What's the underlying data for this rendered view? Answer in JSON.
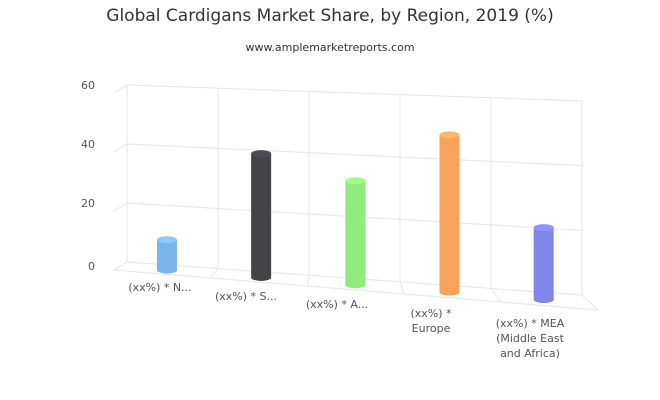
{
  "chart_data": {
    "type": "bar",
    "title": "Global Cardigans Market Share, by Region, 2019 (%)",
    "subtitle": "www.amplemarketreports.com",
    "xlabel": "",
    "ylabel": "",
    "ylim": [
      0,
      60
    ],
    "yticks": [
      0,
      20,
      40,
      60
    ],
    "grid": true,
    "three_d": true,
    "categories": [
      "(xx%) * N...",
      "(xx%) * S...",
      "(xx%) * A...",
      "(xx%) * Europe",
      "(xx%) * MEA (Middle East and Africa)"
    ],
    "category_display": [
      [
        "(xx%) * N..."
      ],
      [
        "(xx%) * S..."
      ],
      [
        "(xx%) * A..."
      ],
      [
        "(xx%) *",
        "Europe"
      ],
      [
        "(xx%) * MEA",
        "(Middle East",
        "and Africa)"
      ]
    ],
    "values": [
      10,
      40,
      33,
      49,
      22
    ],
    "colors": [
      "#7cb5ec",
      "#434348",
      "#90ed7d",
      "#f7a35c",
      "#8085e9"
    ]
  }
}
